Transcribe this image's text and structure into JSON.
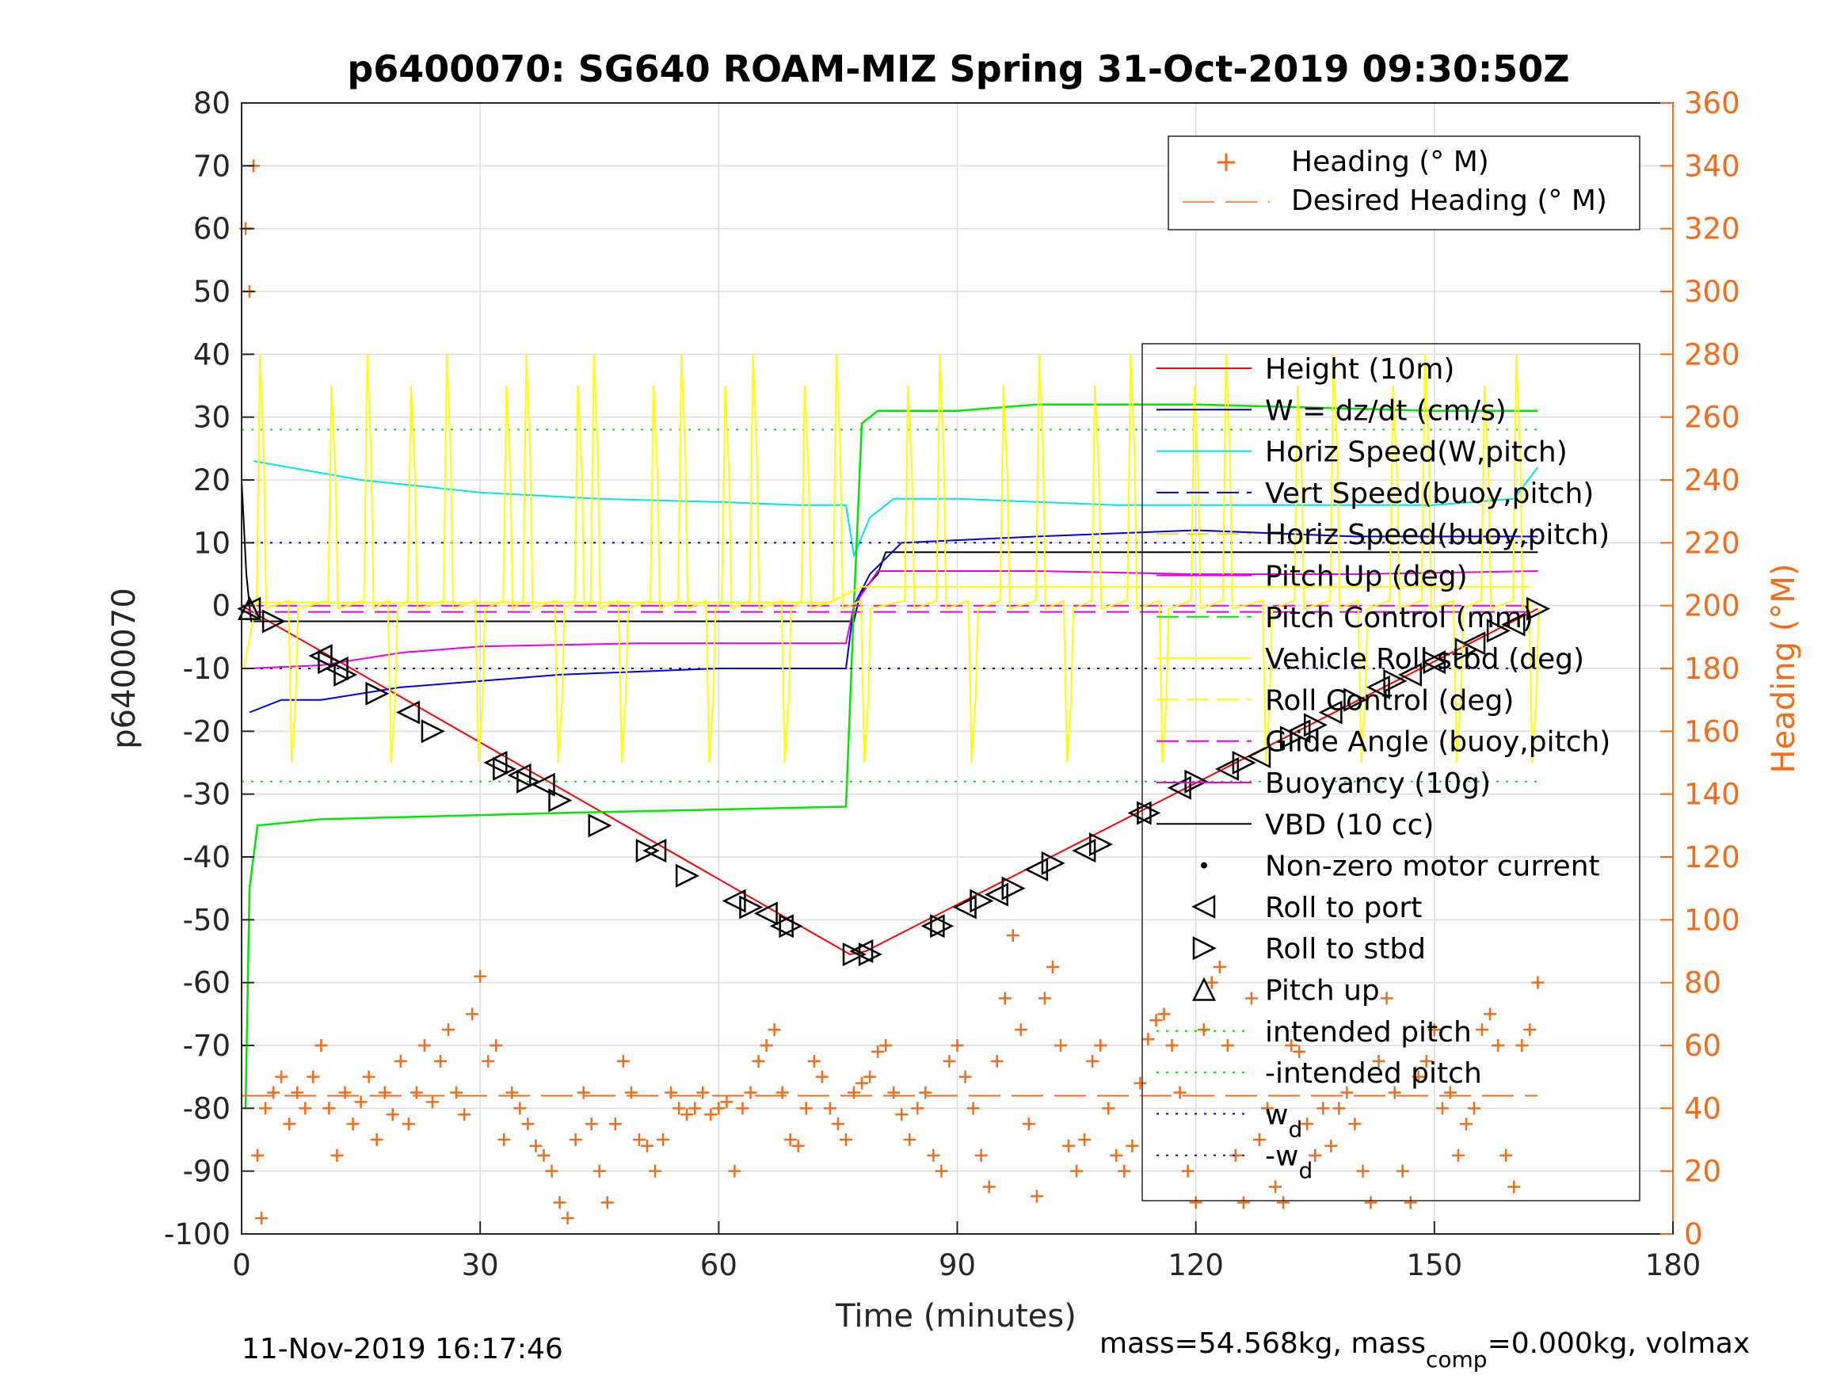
{
  "title": "p6400070: SG640 ROAM-MIZ Spring 31-Oct-2019 09:30:50Z",
  "footer_left": "11-Nov-2019 16:17:46",
  "footer_right_prefix": "mass=54.568kg, mass",
  "footer_right_sub": "comp",
  "footer_right_suffix": "=0.000kg, volmax",
  "colors": {
    "height": "#ff0000",
    "w": "#000080",
    "horiz_speed": "#00e5e5",
    "vert_speed": "#0000e0",
    "horiz_speed_buoy": "#e5e500",
    "pitch_up": "#e600e6",
    "pitch_control": "#00e600",
    "vehicle_roll": "#ffff00",
    "roll_control": "#ffff00",
    "glide_angle": "#e600e6",
    "buoyancy": "#e600e6",
    "vbd": "#000000",
    "heading": "#f06d1d",
    "intended": "#00e600",
    "wd": "#0000e0"
  },
  "chart_data": {
    "type": "line",
    "xlabel": "Time (minutes)",
    "ylabel": "p6400070",
    "y2label": "Heading (°M)",
    "xlim": [
      0,
      180
    ],
    "ylim": [
      -100,
      80
    ],
    "y2lim": [
      0,
      360
    ],
    "xticks": [
      "0",
      "30",
      "60",
      "90",
      "120",
      "150",
      "180"
    ],
    "yticks": [
      "80",
      "70",
      "60",
      "50",
      "40",
      "30",
      "20",
      "10",
      "0",
      "-10",
      "-20",
      "-30",
      "-40",
      "-50",
      "-60",
      "-70",
      "-80",
      "-90",
      "-100"
    ],
    "y2ticks": [
      "360",
      "340",
      "320",
      "300",
      "280",
      "260",
      "240",
      "220",
      "200",
      "180",
      "160",
      "140",
      "120",
      "100",
      "80",
      "60",
      "40",
      "20",
      "0"
    ],
    "grid": true,
    "legend_top": [
      "Heading (° M)",
      "Desired Heading (° M)"
    ],
    "legend_main": [
      "Height (10m)",
      "W = dz/dt (cm/s)",
      "Horiz Speed(W,pitch)",
      "Vert Speed(buoy,pitch)",
      "Horiz Speed(buoy,pitch)",
      "Pitch Up (deg)",
      "Pitch Control (mm)",
      "Vehicle Roll stbd (deg)",
      "Roll Control (deg)",
      "Glide Angle (buoy,pitch)",
      "Buoyancy (10g)",
      "VBD (10 cc)",
      "Non-zero motor current",
      "Roll to port",
      "Roll to stbd",
      "Pitch up",
      "intended pitch",
      "-intended pitch",
      "w",
      "-w"
    ],
    "legend_wd_sub": "d",
    "series": [
      {
        "name": "Height (10m)",
        "x": [
          0,
          76.5,
          78.5,
          163
        ],
        "y": [
          0,
          -55.5,
          -55,
          -0.5
        ]
      },
      {
        "name": "W = dz/dt (cm/s)",
        "x": [
          0,
          0.6,
          1.2,
          77,
          77.8,
          80,
          81,
          163
        ],
        "y": [
          20,
          5,
          -2.5,
          -2.5,
          2,
          5,
          8.5,
          8.5
        ]
      },
      {
        "name": "Horiz Speed(W,pitch)",
        "x": [
          1.5,
          6,
          15,
          30,
          45,
          60,
          70,
          76,
          77,
          79,
          82,
          90,
          110,
          130,
          150,
          160,
          163
        ],
        "y": [
          23,
          22,
          20,
          18,
          17,
          16.5,
          16,
          16,
          8,
          14,
          17,
          17,
          16,
          16,
          16,
          17,
          22
        ]
      },
      {
        "name": "Vert Speed(buoy,pitch)",
        "x": [
          1,
          5,
          10,
          20,
          40,
          60,
          76,
          77,
          79,
          83,
          100,
          120,
          140,
          160,
          163
        ],
        "y": [
          -17,
          -15,
          -15,
          -13,
          -11,
          -10,
          -10,
          0,
          5,
          10,
          11,
          12,
          11,
          11,
          11
        ]
      },
      {
        "name": "Pitch Up (deg)",
        "x": [
          1,
          10,
          20,
          30,
          50,
          76,
          77,
          80,
          100,
          120,
          140,
          163
        ],
        "y": [
          -10,
          -9.5,
          -7.5,
          -6.5,
          -6,
          -6,
          0,
          5.5,
          5.5,
          5,
          5,
          5.5
        ]
      },
      {
        "name": "Pitch Control (mm)",
        "x": [
          0.5,
          1,
          2,
          10,
          40,
          76,
          77,
          78,
          80,
          90,
          100,
          120,
          150,
          163
        ],
        "y": [
          -80,
          -45,
          -35,
          -34,
          -33,
          -32,
          0,
          29,
          31,
          31,
          32,
          32,
          31,
          31
        ]
      },
      {
        "name": "Glide Angle (buoy,pitch)",
        "x": [
          0,
          163
        ],
        "y": [
          0,
          0
        ]
      },
      {
        "name": "Buoyancy (10g)",
        "x": [
          0,
          163
        ],
        "y": [
          -1,
          -1
        ]
      },
      {
        "name": "intended pitch",
        "x": [
          0,
          163
        ],
        "y": [
          28,
          28
        ]
      },
      {
        "name": "-intended pitch",
        "x": [
          0,
          163
        ],
        "y": [
          -28,
          -28
        ]
      },
      {
        "name": "w",
        "x": [
          0,
          163
        ],
        "y": [
          10,
          10
        ]
      },
      {
        "name": "-w",
        "x": [
          0,
          163
        ],
        "y": [
          -10,
          -10
        ]
      },
      {
        "name": "Desired Heading (° M)",
        "x": [
          0,
          163
        ],
        "y2": [
          44,
          44
        ]
      },
      {
        "name": "Roll to port",
        "x": [
          1,
          10,
          12,
          21,
          32,
          35,
          38,
          52,
          62,
          66,
          68,
          78,
          87,
          91,
          95,
          100,
          106,
          113,
          118,
          124,
          128,
          133,
          137,
          143,
          147,
          150,
          155,
          160
        ],
        "y": [
          -0.5,
          -8,
          -10,
          -17,
          -25,
          -27,
          -28.5,
          -39,
          -47,
          -49,
          -51,
          -55,
          -51,
          -48,
          -46,
          -42,
          -39,
          -33,
          -29,
          -26,
          -24,
          -20,
          -17,
          -13,
          -11,
          -9,
          -6,
          -3
        ]
      },
      {
        "name": "Roll to stbd",
        "x": [
          4,
          11,
          13,
          17,
          24,
          33,
          36,
          40,
          45,
          51,
          56,
          64,
          69,
          77,
          79,
          88,
          93,
          97,
          102,
          108,
          114,
          120,
          126,
          132,
          135,
          140,
          145,
          150,
          154,
          158,
          163
        ],
        "y": [
          -2.5,
          -9,
          -11,
          -14,
          -20,
          -26,
          -28,
          -31,
          -35,
          -39,
          -43,
          -48,
          -51,
          -55.5,
          -55.5,
          -51,
          -47,
          -45,
          -41,
          -38,
          -33,
          -28,
          -25,
          -21,
          -19,
          -15,
          -12,
          -9,
          -7,
          -4,
          -0.5
        ]
      },
      {
        "name": "Pitch up",
        "x": [
          1
        ],
        "y": [
          -0.5
        ]
      },
      {
        "name": "Heading (° M)",
        "x": [
          0.5,
          1,
          1.5,
          2,
          2.5,
          3,
          4,
          5,
          6,
          7,
          8,
          9,
          10,
          11,
          12,
          13,
          14,
          15,
          16,
          17,
          18,
          19,
          20,
          21,
          22,
          23,
          24,
          25,
          26,
          27,
          28,
          29,
          30,
          31,
          32,
          33,
          34,
          35,
          36,
          37,
          38,
          39,
          40,
          41,
          42,
          43,
          44,
          45,
          46,
          47,
          48,
          49,
          50,
          51,
          52,
          53,
          54,
          55,
          56,
          57,
          58,
          59,
          60,
          61,
          62,
          63,
          64,
          65,
          66,
          67,
          68,
          69,
          70,
          71,
          72,
          73,
          74,
          75,
          76,
          77,
          78,
          79,
          80,
          81,
          82,
          83,
          84,
          85,
          86,
          87,
          88,
          89,
          90,
          91,
          92,
          93,
          94,
          95,
          96,
          97,
          98,
          99,
          100,
          101,
          102,
          103,
          104,
          105,
          106,
          107,
          108,
          109,
          110,
          111,
          112,
          113,
          114,
          115,
          116,
          117,
          118,
          119,
          120,
          121,
          122,
          123,
          124,
          125,
          126,
          127,
          128,
          129,
          130,
          131,
          132,
          133,
          134,
          135,
          136,
          137,
          138,
          139,
          140,
          141,
          142,
          143,
          144,
          145,
          146,
          147,
          148,
          149,
          150,
          151,
          152,
          153,
          154,
          155,
          156,
          157,
          158,
          159,
          160,
          161,
          162,
          163
        ],
        "y2": [
          320,
          300,
          340,
          25,
          5,
          40,
          45,
          50,
          35,
          45,
          40,
          50,
          60,
          40,
          25,
          45,
          35,
          42,
          50,
          30,
          45,
          38,
          55,
          35,
          45,
          60,
          42,
          55,
          65,
          45,
          38,
          70,
          82,
          55,
          60,
          30,
          45,
          40,
          35,
          28,
          25,
          20,
          10,
          5,
          30,
          45,
          35,
          20,
          10,
          35,
          55,
          45,
          30,
          28,
          20,
          30,
          45,
          40,
          38,
          40,
          45,
          38,
          40,
          42,
          20,
          40,
          45,
          55,
          60,
          65,
          45,
          30,
          28,
          40,
          55,
          50,
          40,
          35,
          30,
          45,
          48,
          50,
          58,
          60,
          45,
          38,
          30,
          40,
          45,
          25,
          20,
          55,
          60,
          50,
          40,
          25,
          15,
          55,
          75,
          95,
          65,
          35,
          12,
          75,
          85,
          60,
          28,
          20,
          30,
          55,
          60,
          40,
          25,
          20,
          28,
          48,
          62,
          68,
          70,
          60,
          45,
          20,
          10,
          65,
          80,
          85,
          60,
          25,
          10,
          75,
          30,
          40,
          15,
          10,
          60,
          58,
          35,
          25,
          40,
          28,
          40,
          45,
          35,
          20,
          10,
          55,
          75,
          45,
          20,
          10,
          50,
          55,
          65,
          40,
          45,
          25,
          35,
          40,
          65,
          70,
          60,
          25,
          15,
          60,
          65,
          80
        ]
      }
    ]
  }
}
